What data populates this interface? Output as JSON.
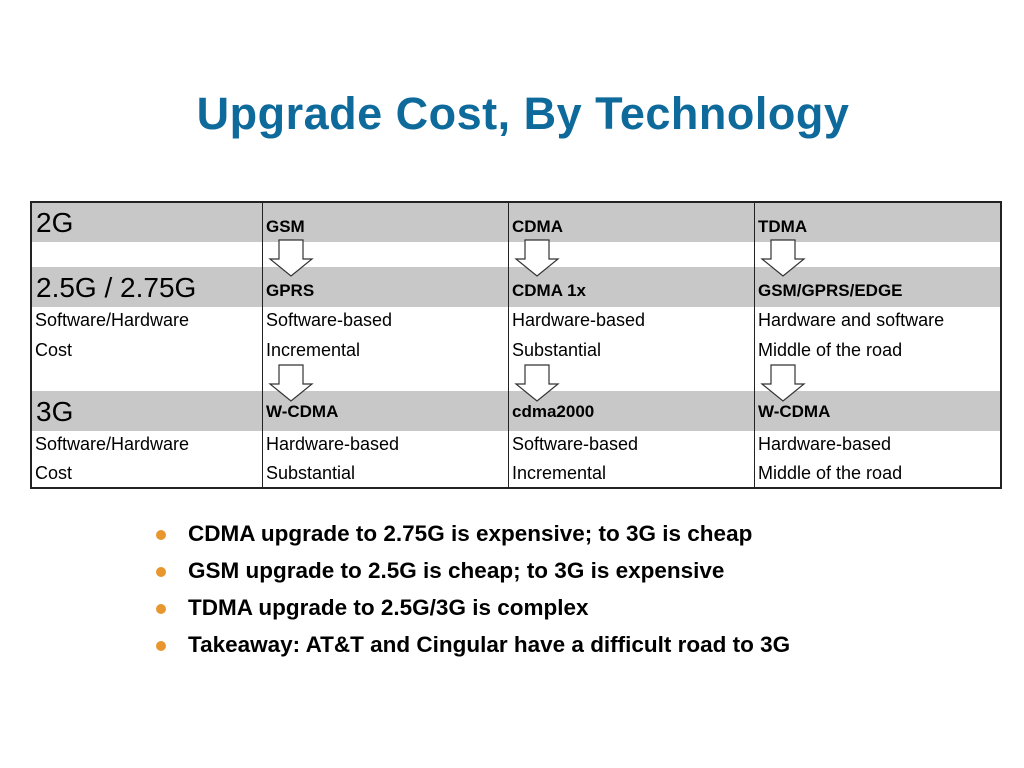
{
  "title": "Upgrade Cost, By Technology",
  "table": {
    "row_2g": {
      "label": "2G",
      "gsm": "GSM",
      "cdma": "CDMA",
      "tdma": "TDMA"
    },
    "row_25g": {
      "label": "2.5G / 2.75G",
      "gsm": "GPRS",
      "cdma": "CDMA 1x",
      "tdma": "GSM/GPRS/EDGE"
    },
    "details_25g": {
      "sw_label": "Software/Hardware",
      "cost_label": "Cost",
      "gsm_sw": "Software-based",
      "gsm_cost": "Incremental",
      "cdma_sw": "Hardware-based",
      "cdma_cost": "Substantial",
      "tdma_sw": "Hardware and software",
      "tdma_cost": "Middle of the road"
    },
    "row_3g": {
      "label": "3G",
      "gsm": "W-CDMA",
      "cdma": "cdma2000",
      "tdma": "W-CDMA"
    },
    "details_3g": {
      "sw_label": "Software/Hardware",
      "cost_label": "Cost",
      "gsm_sw": "Hardware-based",
      "gsm_cost": "Substantial",
      "cdma_sw": "Software-based",
      "cdma_cost": "Incremental",
      "tdma_sw": "Hardware-based",
      "tdma_cost": "Middle of the road"
    }
  },
  "bullets": [
    "CDMA upgrade to 2.75G is expensive; to 3G is cheap",
    "GSM upgrade to 2.5G is cheap; to 3G is expensive",
    "TDMA upgrade to 2.5G/3G is complex",
    "Takeaway: AT&T and Cingular have a difficult road to 3G"
  ],
  "colors": {
    "title": "#0f6a9c",
    "band": "#c8c8c8",
    "bullet": "#e8962e",
    "border": "#222222"
  }
}
